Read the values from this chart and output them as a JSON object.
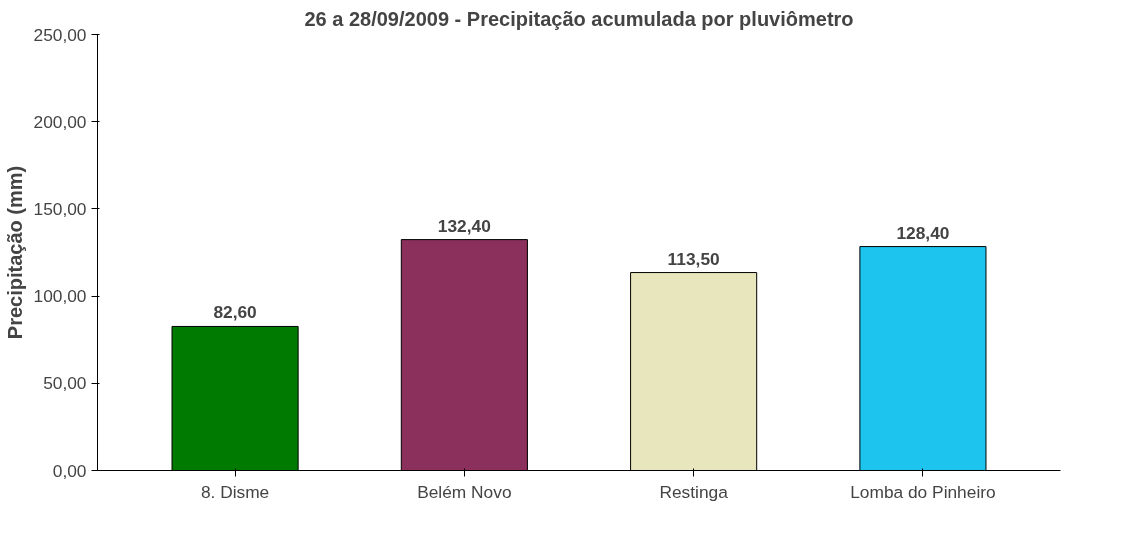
{
  "chart_data": {
    "type": "bar",
    "title": "26 a 28/09/2009 - Precipitação acumulada por pluviômetro",
    "ylabel": "Precipitação (mm)",
    "categories": [
      "8. Disme",
      "Belém Novo",
      "Restinga",
      "Lomba do Pinheiro"
    ],
    "values": [
      82.6,
      132.4,
      113.5,
      128.4
    ],
    "colors": [
      "#007a00",
      "#8b2f5c",
      "#e8e6bc",
      "#1cc4ee"
    ],
    "value_labels": [
      "82,60",
      "132,40",
      "113,50",
      "128,40"
    ],
    "ylim": [
      0,
      250
    ],
    "yticks": [
      {
        "value": 0,
        "label": "0,00"
      },
      {
        "value": 50,
        "label": "50,00"
      },
      {
        "value": 100,
        "label": "100,00"
      },
      {
        "value": 150,
        "label": "150,00"
      },
      {
        "value": 200,
        "label": "200,00"
      },
      {
        "value": 250,
        "label": "250,00"
      }
    ],
    "grid": false
  }
}
